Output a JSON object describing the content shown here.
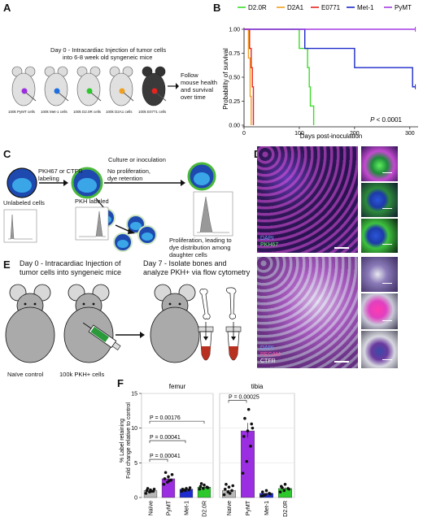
{
  "panels": {
    "A": {
      "letter": "A",
      "text_line1": "Day 0 - Intracardiac Injection of tumor cells",
      "text_line2": "into 6-8 week old syngeneic mice",
      "follow_line1": "Follow",
      "follow_line2": "mouse health",
      "follow_line3": "and survival",
      "follow_line4": "over time",
      "mouse_labels": [
        "100k PyMT cells",
        "100k Met-1 cells",
        "100k D2.0R cells",
        "100k D2A1 cells",
        "100k E0771 cells"
      ]
    },
    "B": {
      "letter": "B",
      "legend": [
        "D2.0R",
        "D2A1",
        "E0771",
        "Met-1",
        "PyMT"
      ],
      "ylabel": "Probability of survival",
      "xlabel": "Days post-inoculation",
      "pvalue_prefix": "P",
      "pvalue_rest": " < 0.0001"
    },
    "C": {
      "letter": "C",
      "pkh_label_line1": "PKH67 or CTFR",
      "pkh_label_line2": "labeling",
      "unlabeled": "Unlabeled cells",
      "pkh_labeled": "PKH labeled",
      "culture": "Culture or inoculation",
      "no_prolif_line1": "No proliferation,",
      "no_prolif_line2": "dye retention",
      "prolif_line1": "Proliferation, leading to",
      "prolif_line2": "dye distribution among",
      "prolif_line3": "daughter cells"
    },
    "D": {
      "letter": "D",
      "top_labels": [
        "DAPI",
        "PKH67"
      ],
      "bottom_labels": [
        "DAPI",
        "PECAM",
        "CTFR"
      ]
    },
    "E": {
      "letter": "E",
      "day0_line1": "Day 0 - Intracardiac Injection of",
      "day0_line2": "tumor cells into syngeneic mice",
      "day7_line1": "Day 7 - Isolate bones and",
      "day7_line2": "analyze PKH+ via flow cytometry",
      "naive": "Naïve control",
      "pkh_cells": "100k PKH+ cells"
    },
    "F": {
      "letter": "F",
      "group_titles": [
        "femur",
        "tibia"
      ],
      "ylabel_line1": "% Label retaining",
      "ylabel_line2": "Fold change relative to control",
      "pvalues": [
        "P = 0.00041",
        "P = 0.00041",
        "P = 0.00176",
        "P = 0.00025"
      ]
    }
  },
  "chart_data": [
    {
      "type": "line",
      "xlabel": "Days post-inoculation",
      "ylabel": "Probability of survival",
      "xlim": [
        0,
        315
      ],
      "ylim": [
        0,
        1.0
      ],
      "x_ticks": [
        0,
        100,
        200,
        300
      ],
      "y_ticks": [
        0.0,
        0.25,
        0.5,
        0.75,
        1.0
      ],
      "legend_position": "top",
      "annotation": "P < 0.0001",
      "series": [
        {
          "name": "D2.0R",
          "color": "#3cdc28",
          "steps": [
            [
              0,
              1.0
            ],
            [
              100,
              1.0
            ],
            [
              100,
              0.8
            ],
            [
              115,
              0.8
            ],
            [
              115,
              0.6
            ],
            [
              118,
              0.6
            ],
            [
              118,
              0.4
            ],
            [
              120,
              0.4
            ],
            [
              120,
              0.2
            ],
            [
              126,
              0.2
            ],
            [
              126,
              0.0
            ]
          ]
        },
        {
          "name": "D2A1",
          "color": "#f0a020",
          "steps": [
            [
              0,
              1.0
            ],
            [
              8,
              1.0
            ],
            [
              8,
              0.7
            ],
            [
              11,
              0.7
            ],
            [
              11,
              0.3
            ],
            [
              13,
              0.3
            ],
            [
              13,
              0.0
            ]
          ]
        },
        {
          "name": "E0771",
          "color": "#e8231e",
          "steps": [
            [
              0,
              1.0
            ],
            [
              10,
              1.0
            ],
            [
              10,
              0.8
            ],
            [
              13,
              0.8
            ],
            [
              13,
              0.6
            ],
            [
              15,
              0.6
            ],
            [
              15,
              0.4
            ],
            [
              17,
              0.4
            ],
            [
              17,
              0.0
            ]
          ]
        },
        {
          "name": "Met-1",
          "color": "#1d28c8",
          "steps": [
            [
              0,
              1.0
            ],
            [
              110,
              1.0
            ],
            [
              110,
              0.8
            ],
            [
              200,
              0.8
            ],
            [
              200,
              0.6
            ],
            [
              305,
              0.6
            ],
            [
              305,
              0.4
            ],
            [
              310,
              0.4
            ]
          ]
        },
        {
          "name": "PyMT",
          "color": "#a43ce0",
          "steps": [
            [
              0,
              1.0
            ],
            [
              310,
              1.0
            ]
          ]
        }
      ]
    },
    {
      "type": "bar",
      "ylabel": "% Label retaining Fold change relative to control",
      "ylim": [
        0,
        15
      ],
      "y_ticks": [
        0,
        5,
        10,
        15
      ],
      "groups": [
        {
          "title": "femur",
          "categories": [
            "Naïve",
            "PyMT",
            "Met-1",
            "D2.0R"
          ],
          "values": [
            1.0,
            2.7,
            1.2,
            1.5
          ],
          "colors": [
            "#b8b8b8",
            "#9b2ee0",
            "#1e2bd0",
            "#2cc82c"
          ],
          "points": [
            [
              0.6,
              0.8,
              0.9,
              1.0,
              1.1,
              1.2,
              1.3,
              0.9
            ],
            [
              1.9,
              2.2,
              2.5,
              2.7,
              3.0,
              3.3,
              3.6,
              2.4
            ],
            [
              0.9,
              1.0,
              1.1,
              1.2,
              1.3,
              1.4,
              1.1
            ],
            [
              1.2,
              1.3,
              1.5,
              1.6,
              1.8,
              1.4,
              2.0
            ]
          ]
        },
        {
          "title": "tibia",
          "categories": [
            "Naïve",
            "PyMT",
            "Met-1",
            "D2.0R"
          ],
          "values": [
            1.0,
            9.6,
            0.6,
            1.3
          ],
          "colors": [
            "#b8b8b8",
            "#9b2ee0",
            "#1e2bd0",
            "#2cc82c"
          ],
          "points": [
            [
              0.4,
              0.8,
              1.0,
              1.2,
              1.5,
              1.7,
              1.9,
              0.6
            ],
            [
              3.5,
              5.2,
              7.4,
              8.8,
              9.6,
              10.6,
              11.4,
              12.7,
              10.0
            ],
            [
              0.2,
              0.4,
              0.6,
              0.8,
              1.0,
              0.5,
              0.3
            ],
            [
              0.8,
              1.0,
              1.3,
              1.6,
              1.9,
              1.2,
              1.4
            ]
          ]
        }
      ]
    }
  ]
}
